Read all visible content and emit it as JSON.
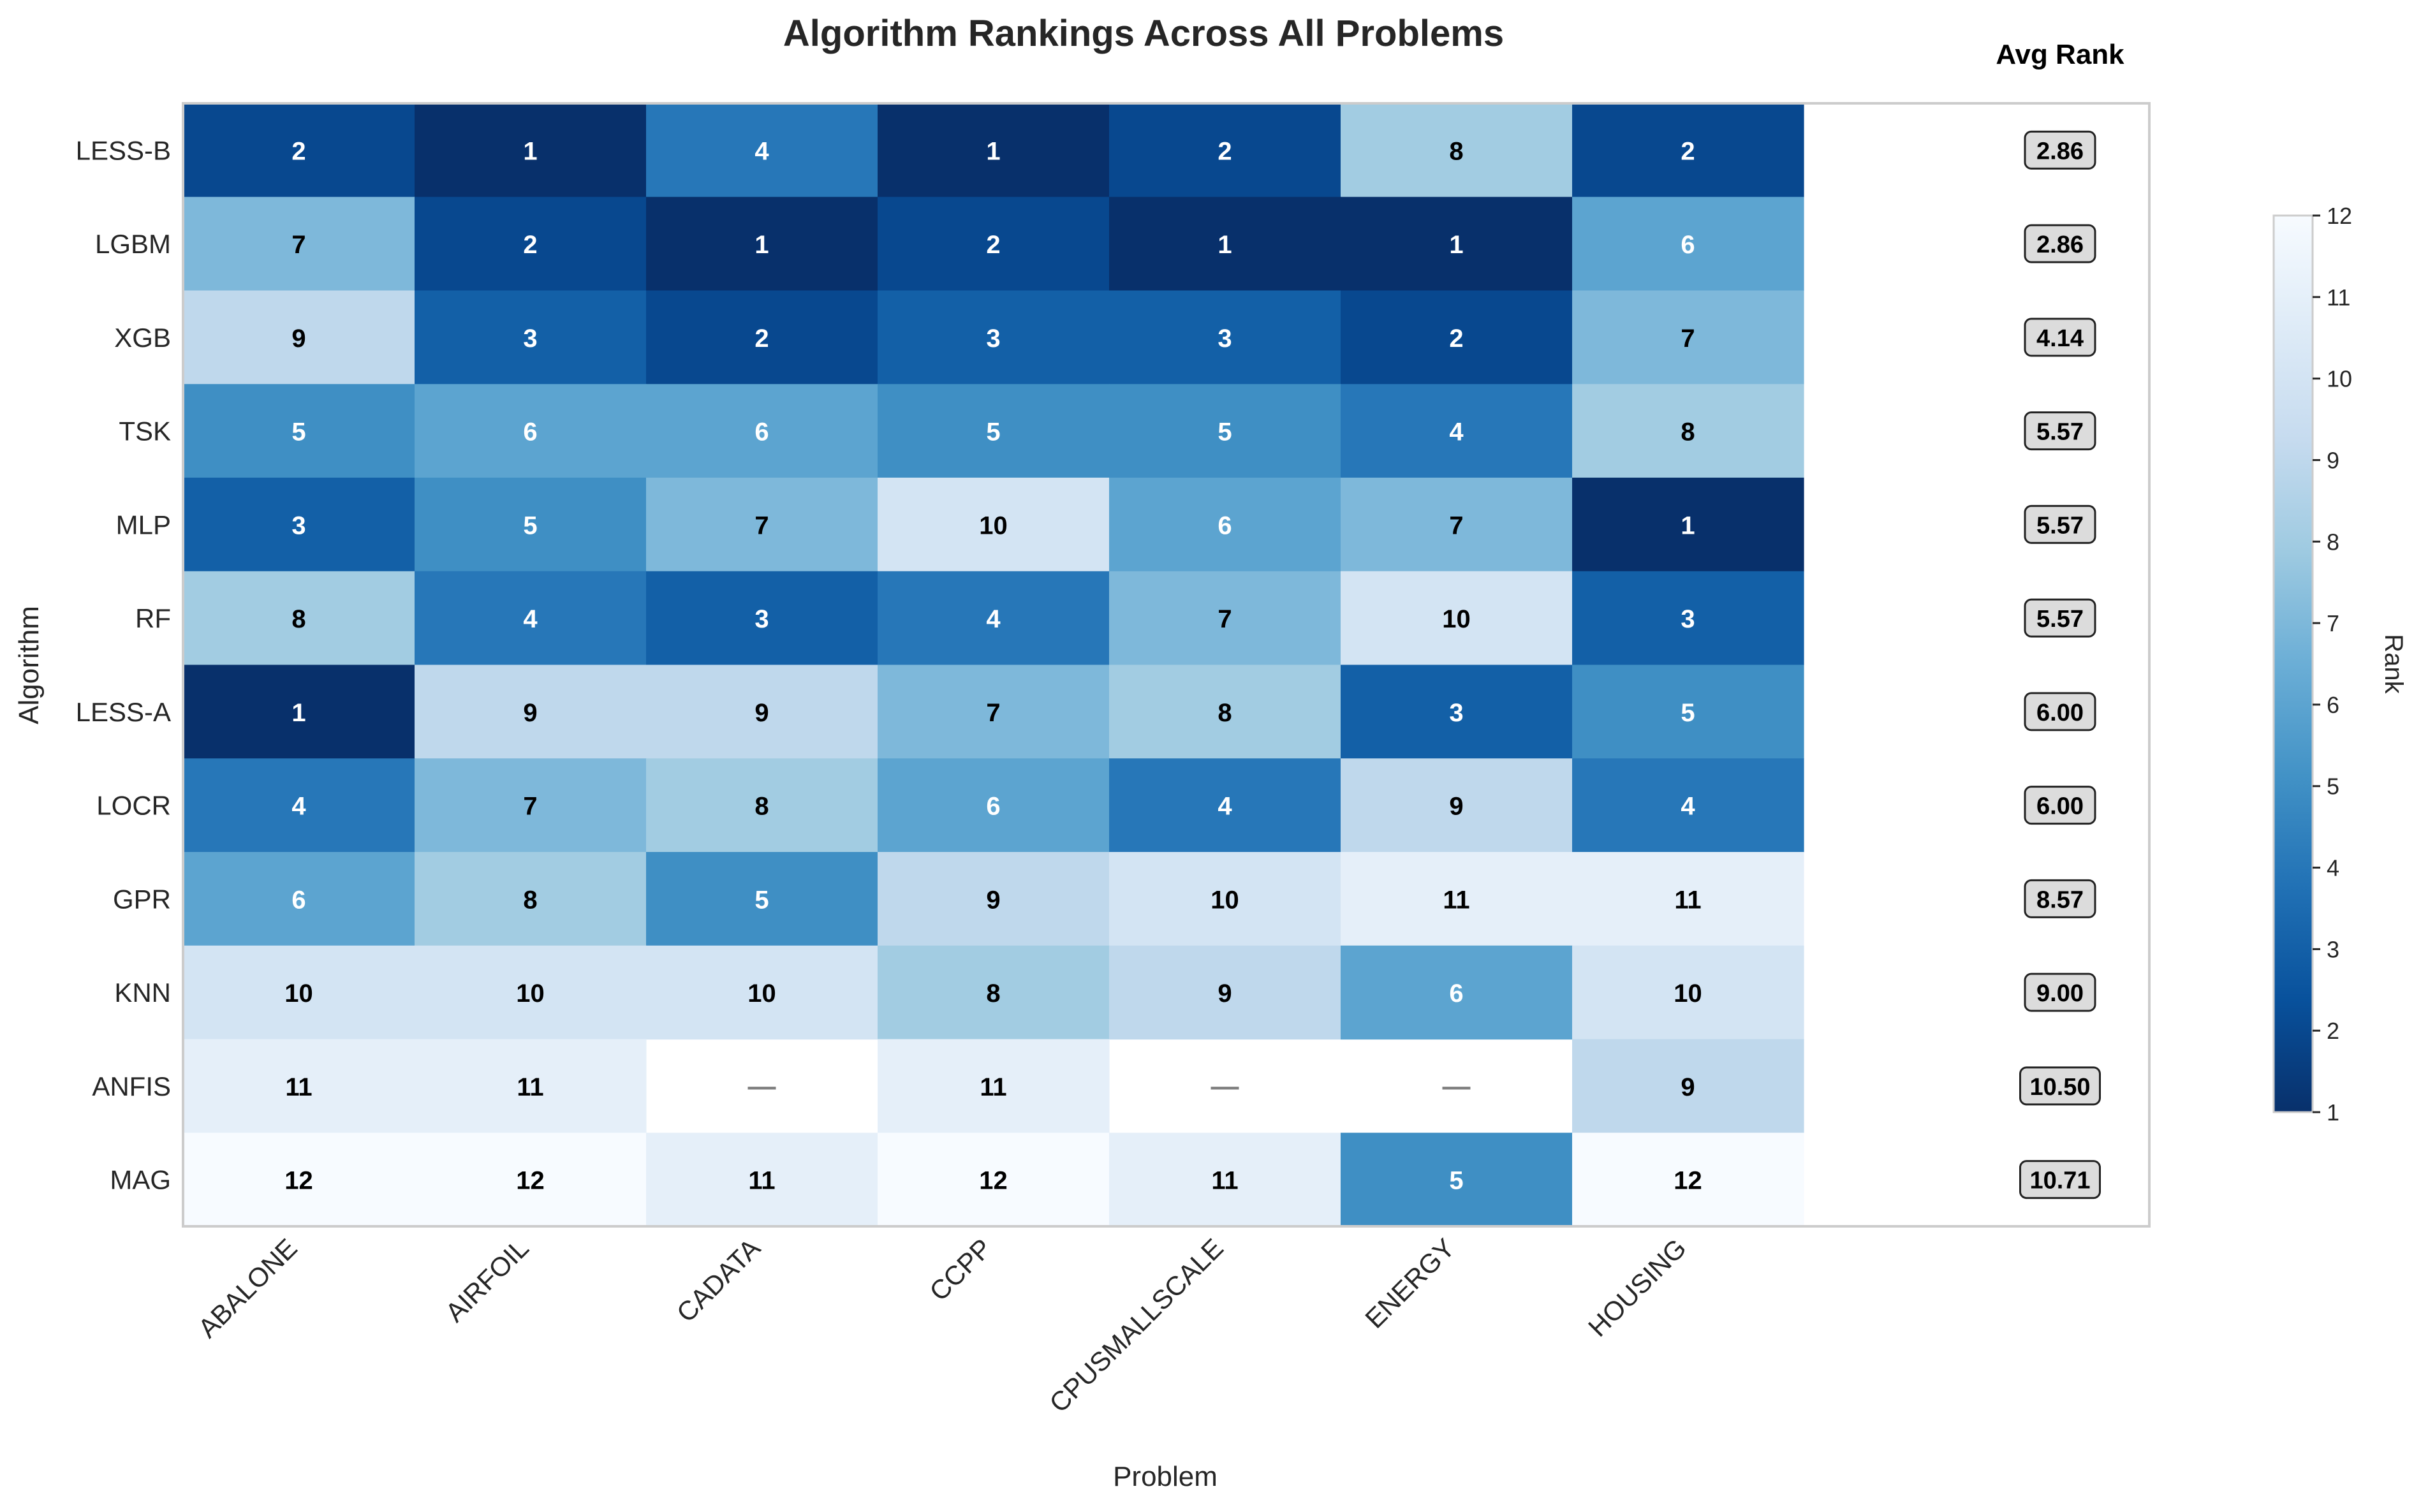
{
  "chart_data": {
    "type": "heatmap",
    "title": "Algorithm Rankings Across All Problems",
    "xlabel": "Problem",
    "ylabel": "Algorithm",
    "avg_header": "Avg Rank",
    "colorbar_label": "Rank",
    "colorbar_range": [
      1,
      12
    ],
    "colorbar_ticks": [
      1,
      2,
      3,
      4,
      5,
      6,
      7,
      8,
      9,
      10,
      11,
      12
    ],
    "missing_symbol": "—",
    "colormap": "Blues_r",
    "columns": [
      "ABALONE",
      "AIRFOIL",
      "CADATA",
      "CCPP",
      "CPUSMALLSCALE",
      "ENERGY",
      "HOUSING"
    ],
    "rows": [
      "LESS-B",
      "LGBM",
      "XGB",
      "TSK",
      "MLP",
      "RF",
      "LESS-A",
      "LOCR",
      "GPR",
      "KNN",
      "ANFIS",
      "MAG"
    ],
    "values": [
      [
        2,
        1,
        4,
        1,
        2,
        8,
        2
      ],
      [
        7,
        2,
        1,
        2,
        1,
        1,
        6
      ],
      [
        9,
        3,
        2,
        3,
        3,
        2,
        7
      ],
      [
        5,
        6,
        6,
        5,
        5,
        4,
        8
      ],
      [
        3,
        5,
        7,
        10,
        6,
        7,
        1
      ],
      [
        8,
        4,
        3,
        4,
        7,
        10,
        3
      ],
      [
        1,
        9,
        9,
        7,
        8,
        3,
        5
      ],
      [
        4,
        7,
        8,
        6,
        4,
        9,
        4
      ],
      [
        6,
        8,
        5,
        9,
        10,
        11,
        11
      ],
      [
        10,
        10,
        10,
        8,
        9,
        6,
        10
      ],
      [
        11,
        11,
        null,
        11,
        null,
        null,
        9
      ],
      [
        12,
        12,
        11,
        12,
        11,
        5,
        12
      ]
    ],
    "avg_rank": [
      "2.86",
      "2.86",
      "4.14",
      "5.57",
      "5.57",
      "5.57",
      "6.00",
      "6.00",
      "8.57",
      "9.00",
      "10.50",
      "10.71"
    ]
  }
}
